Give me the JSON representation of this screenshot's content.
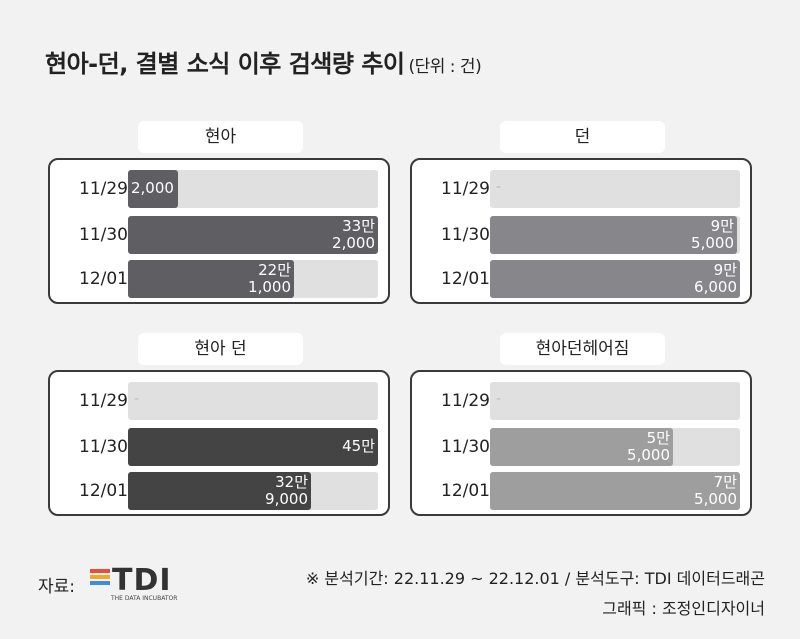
{
  "title": {
    "main": "현아-던, 결별 소식 이후 검색량 추이",
    "unit": "(단위 : 건)"
  },
  "chart_data": [
    {
      "type": "bar",
      "title": "현아",
      "categories": [
        "11/29",
        "11/30",
        "12/01"
      ],
      "values": [
        2000,
        332000,
        221000
      ],
      "value_labels": [
        [
          "2,000"
        ],
        [
          "33만",
          "2,000"
        ],
        [
          "22만",
          "1,000"
        ]
      ],
      "color": "#5f5e63"
    },
    {
      "type": "bar",
      "title": "던",
      "categories": [
        "11/29",
        "11/30",
        "12/01"
      ],
      "values": [
        0,
        95000,
        96000
      ],
      "value_labels": [
        [
          "-"
        ],
        [
          "9만",
          "5,000"
        ],
        [
          "9만",
          "6,000"
        ]
      ],
      "color": "#87868b"
    },
    {
      "type": "bar",
      "title": "현아 던",
      "categories": [
        "11/29",
        "11/30",
        "12/01"
      ],
      "values": [
        0,
        450000,
        329000
      ],
      "value_labels": [
        [
          "-"
        ],
        [
          "45만"
        ],
        [
          "32만",
          "9,000"
        ]
      ],
      "color": "#444444"
    },
    {
      "type": "bar",
      "title": "현아던헤어짐",
      "categories": [
        "11/29",
        "11/30",
        "12/01"
      ],
      "values": [
        0,
        55000,
        75000
      ],
      "value_labels": [
        [
          "-"
        ],
        [
          "5만",
          "5,000"
        ],
        [
          "7만",
          "5,000"
        ]
      ],
      "color": "#9e9e9e"
    }
  ],
  "footer": {
    "source_label": "자료:",
    "logo_text": "TDI",
    "logo_sub": "THE DATA INCUBATOR",
    "logo_colors": [
      "#e94e3c",
      "#f5a623",
      "#3b8fd4"
    ],
    "analysis_note": "※ 분석기간:  22.11.29 ~ 22.12.01 / 분석도구: TDI 데이터드래곤",
    "graphic_credit": "그래픽 : 조정인디자이너"
  }
}
